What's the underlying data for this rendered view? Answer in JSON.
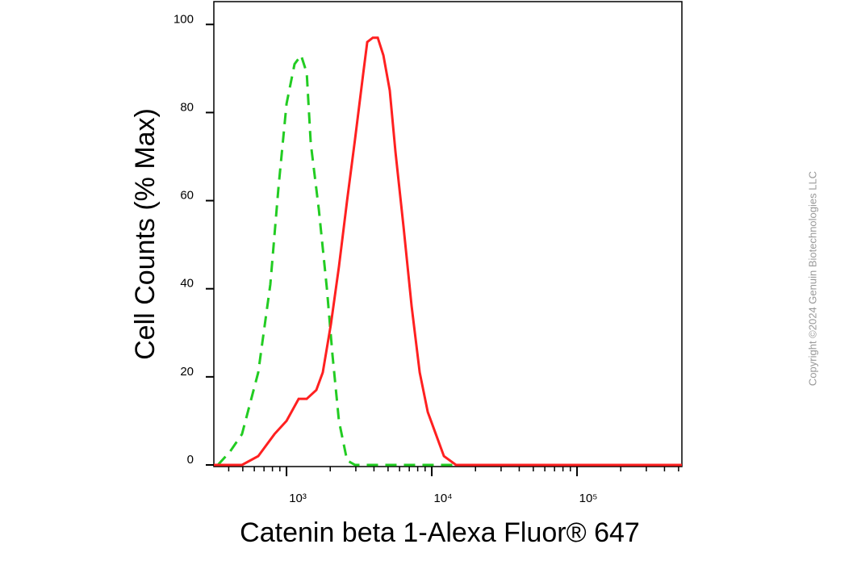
{
  "chart_data": {
    "type": "line",
    "x_label": "Catenin beta 1-Alexa Fluor® 647",
    "y_label": "Cell Counts (% Max)",
    "watermark": "Copyright ©2024 Genuin Biotechnologies LLC",
    "xscale": "log",
    "xlim": [
      316,
      527000
    ],
    "xticks": [
      {
        "value": 1000,
        "label": "10³"
      },
      {
        "value": 10000,
        "label": "10⁴"
      },
      {
        "value": 100000,
        "label": "10⁵"
      }
    ],
    "x_minor_ticks": [
      400,
      500,
      600,
      700,
      800,
      900,
      2000,
      3000,
      4000,
      5000,
      6000,
      7000,
      8000,
      9000,
      20000,
      30000,
      40000,
      50000,
      60000,
      70000,
      80000,
      90000,
      200000,
      300000,
      400000,
      500000
    ],
    "ylim": [
      0,
      105
    ],
    "yticks": [
      0,
      20,
      40,
      60,
      80,
      100
    ],
    "series": [
      {
        "color": "#22cc22",
        "dash": true,
        "x": [
          337,
          408,
          494,
          639,
          774,
          880,
          1000,
          1136,
          1259,
          1377,
          1468,
          1668,
          1896,
          2073,
          2296,
          2610,
          2965,
          6390,
          22960,
          527000
        ],
        "values": [
          0,
          3,
          7,
          21,
          41,
          63,
          82,
          91,
          93,
          89,
          73,
          58,
          40,
          25,
          10,
          1,
          0,
          0,
          0,
          0
        ]
      },
      {
        "color": "#ff2020",
        "dash": false,
        "x": [
          316,
          494,
          639,
          826,
          1000,
          1212,
          1377,
          1605,
          1778,
          2021,
          2296,
          2610,
          2965,
          3375,
          3594,
          3929,
          4244,
          4642,
          5140,
          5623,
          6390,
          7263,
          8254,
          9381,
          10660,
          12120,
          14680,
          527000
        ],
        "values": [
          0,
          0,
          2,
          7,
          10,
          15,
          15,
          17,
          21,
          32,
          45,
          60,
          74,
          89,
          96,
          97,
          97,
          93,
          85,
          71,
          54,
          36,
          21,
          12,
          7,
          2,
          0,
          0
        ]
      }
    ]
  }
}
